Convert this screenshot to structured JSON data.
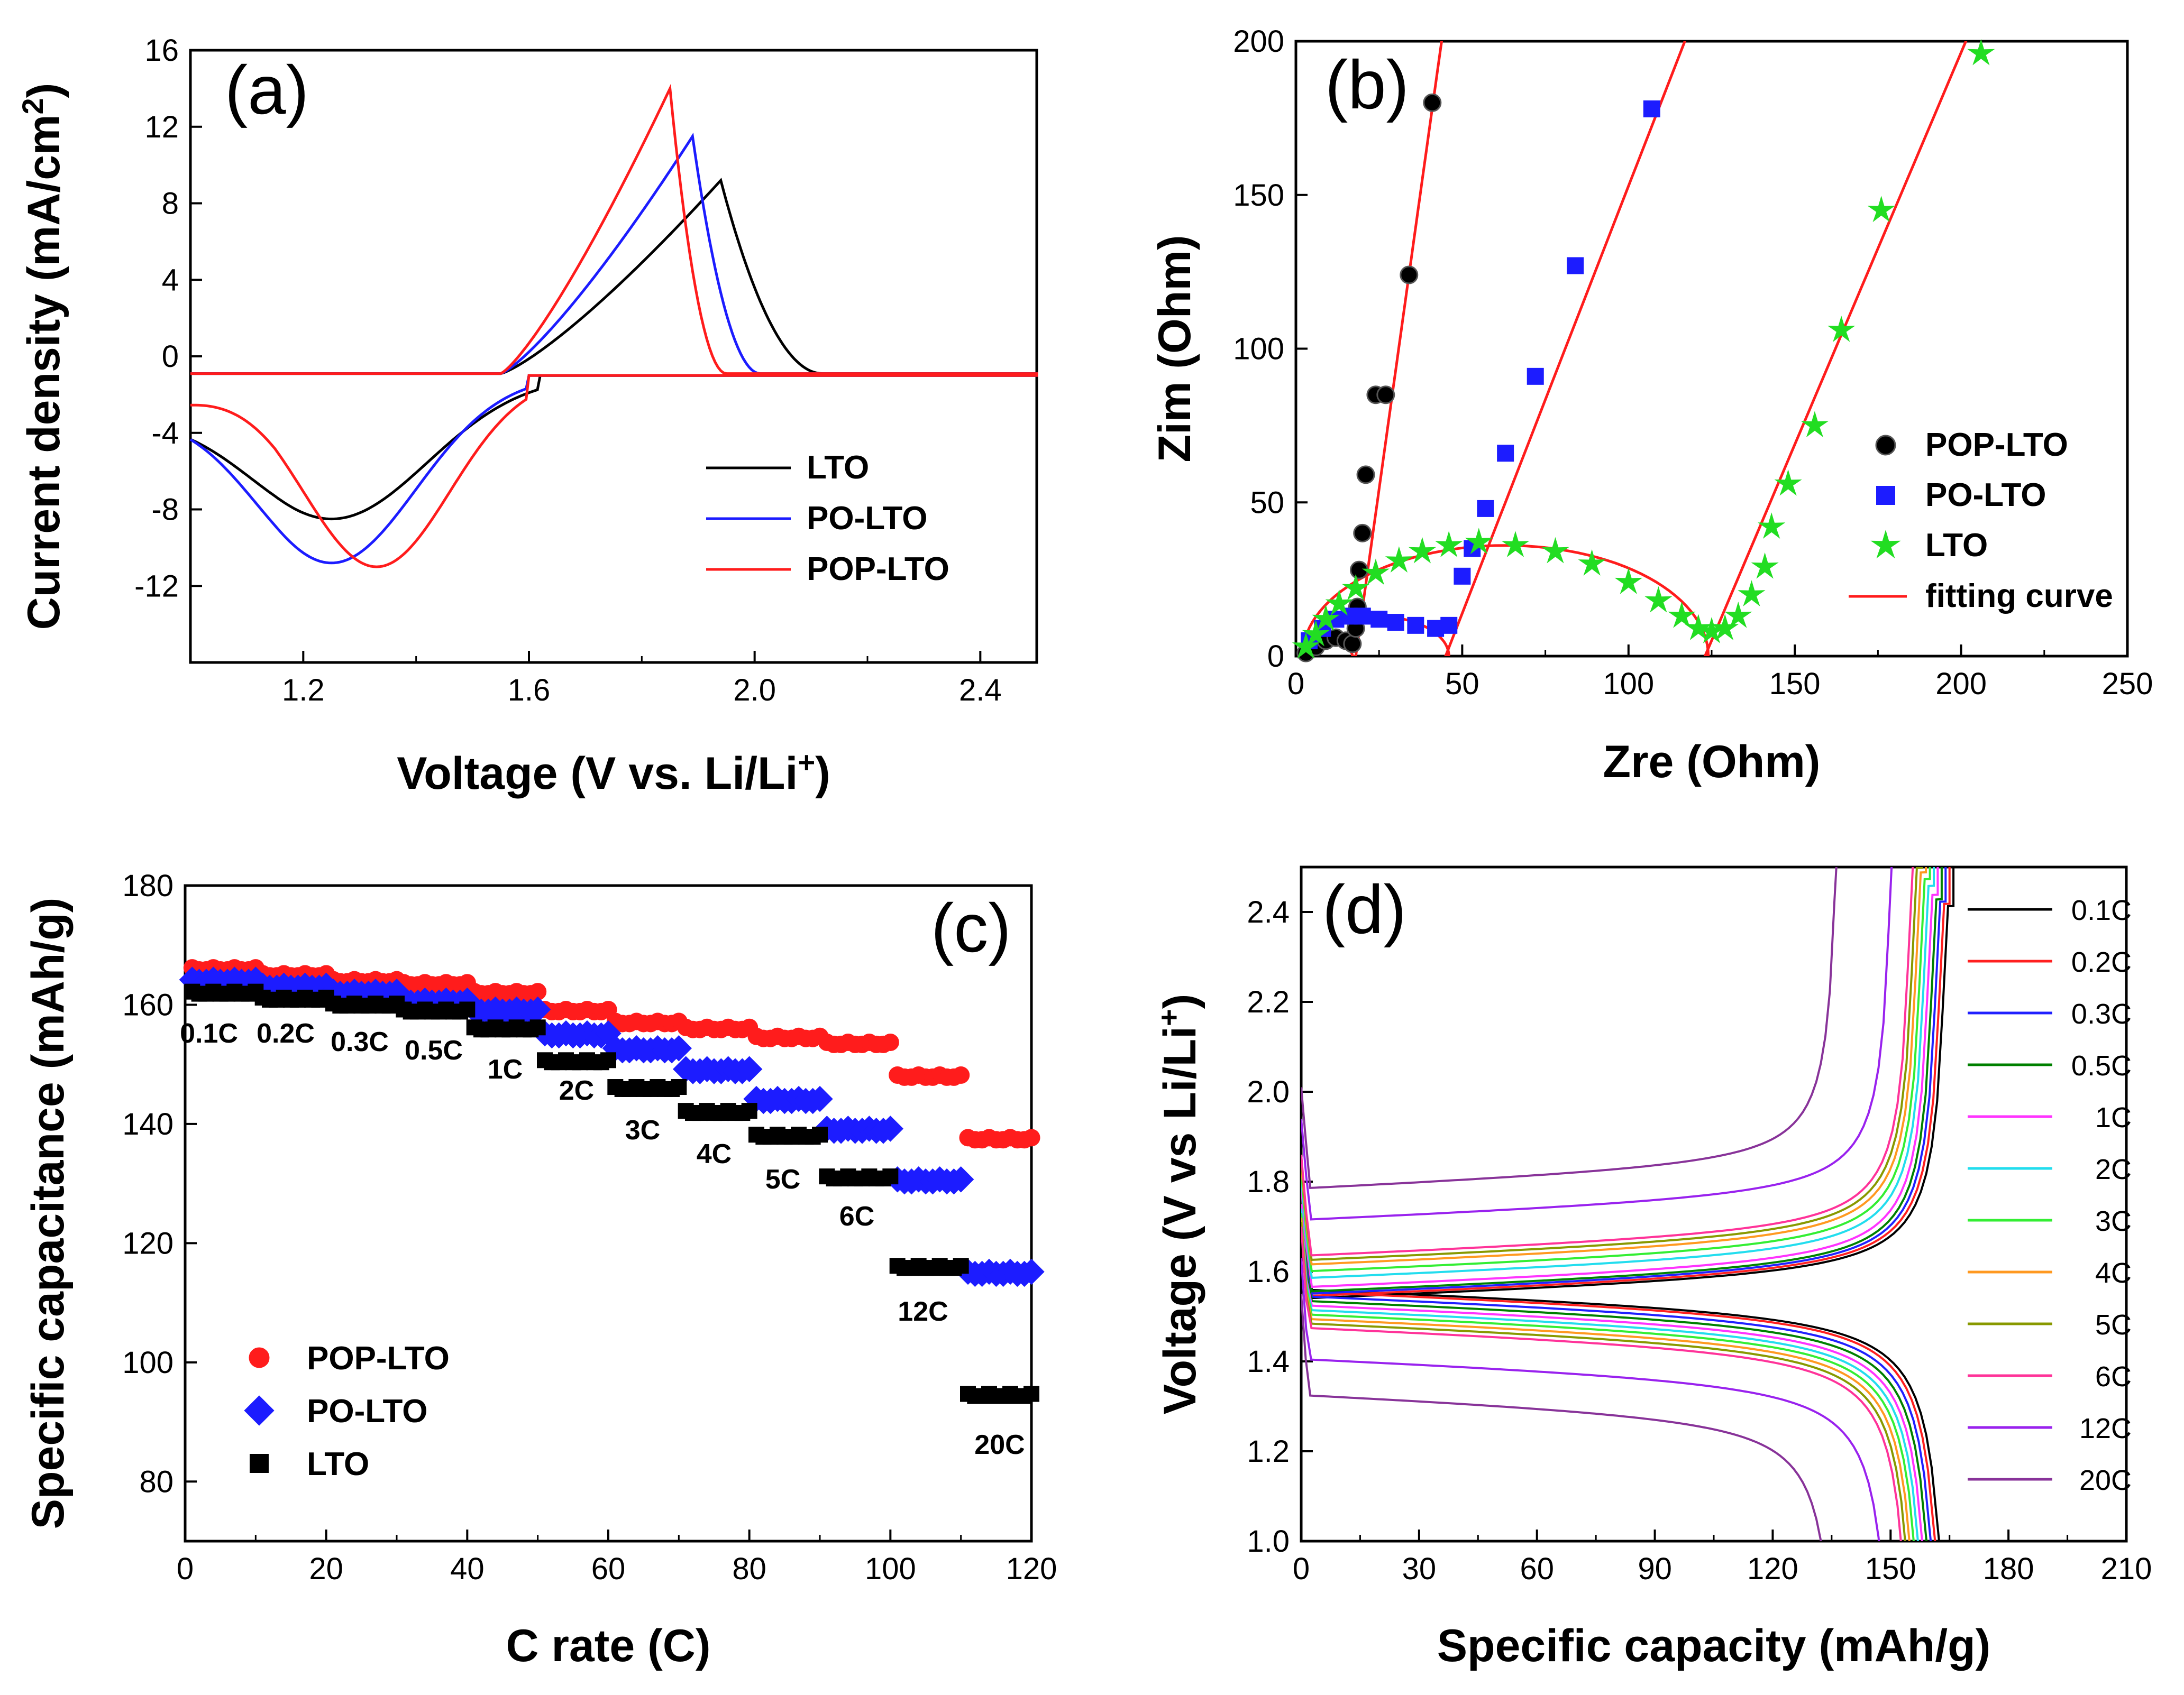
{
  "chart_data": [
    {
      "id": "a",
      "type": "line",
      "panel_label": "(a)",
      "xlabel": "Voltage (V vs. Li/Li",
      "xlabel_sup": "+",
      "xlabel_end": ")",
      "ylabel": "Current density (mA/cm",
      "ylabel_sup": "2",
      "ylabel_end": ")",
      "xlim": [
        1.0,
        2.5
      ],
      "ylim": [
        -16,
        16
      ],
      "xticks": [
        "1.2",
        "1.6",
        "2.0",
        "2.4"
      ],
      "xtick_values": [
        1.2,
        1.6,
        2.0,
        2.4
      ],
      "yticks": [
        "-12",
        "-8",
        "-4",
        "0",
        "4",
        "8",
        "12",
        "16"
      ],
      "ytick_values": [
        -12,
        -8,
        -4,
        0,
        4,
        8,
        12,
        16
      ],
      "series": [
        {
          "name": "LTO",
          "color": "#000000",
          "peak_anodic": [
            1.94,
            9.2
          ],
          "peak_cathodic": [
            1.25,
            -8.5
          ],
          "ox_end": 2.12,
          "red_start": 1.62,
          "red_width": 0.17
        },
        {
          "name": "PO-LTO",
          "color": "#1c1cff",
          "peak_anodic": [
            1.89,
            11.5
          ],
          "peak_cathodic": [
            1.25,
            -10.8
          ],
          "ox_end": 2.01,
          "red_start": 1.6,
          "red_width": 0.15
        },
        {
          "name": "POP-LTO",
          "color": "#ff1c1c",
          "peak_anodic": [
            1.85,
            14.0
          ],
          "peak_cathodic": [
            1.33,
            -11.0
          ],
          "ox_end": 1.95,
          "red_start": 1.6,
          "red_width": 0.13
        }
      ]
    },
    {
      "id": "b",
      "type": "scatter",
      "panel_label": "(b)",
      "xlabel": "Zre (Ohm)",
      "ylabel": "Zim (Ohm)",
      "xlim": [
        0,
        250
      ],
      "ylim": [
        0,
        200
      ],
      "xticks": [
        "0",
        "50",
        "100",
        "150",
        "200",
        "250"
      ],
      "xtick_values": [
        0,
        50,
        100,
        150,
        200,
        250
      ],
      "yticks": [
        "0",
        "50",
        "100",
        "150",
        "200"
      ],
      "ytick_values": [
        0,
        50,
        100,
        150,
        200
      ],
      "legend": [
        "POP-LTO",
        "PO-LTO",
        "LTO",
        "fitting curve"
      ],
      "series": [
        {
          "name": "POP-LTO",
          "color": "#000000",
          "marker": "circle",
          "x": [
            3,
            6,
            9,
            12,
            15,
            17,
            18,
            18.5,
            19,
            20,
            21,
            24,
            27,
            34,
            41
          ],
          "y": [
            1,
            3,
            5,
            6,
            5,
            4,
            9,
            16,
            28,
            40,
            59,
            85,
            85,
            124,
            180
          ],
          "fit": {
            "arc_start": 2,
            "arc_end": 17,
            "arc_height": 4,
            "slope": 7.75,
            "intercept": 18
          }
        },
        {
          "name": "PO-LTO",
          "color": "#1c1cff",
          "marker": "square",
          "x": [
            4,
            8,
            12,
            16,
            20,
            25,
            30,
            36,
            42,
            46,
            50,
            53,
            57,
            63,
            72,
            84,
            107
          ],
          "y": [
            5,
            9,
            12,
            13,
            13,
            12,
            11,
            10,
            9,
            10,
            26,
            35,
            48,
            66,
            91,
            127,
            178
          ],
          "fit": {
            "arc_start": 2,
            "arc_end": 46,
            "arc_height": 13,
            "slope": 2.78,
            "intercept": 45
          }
        },
        {
          "name": "LTO",
          "color": "#22dd22",
          "marker": "star",
          "x": [
            3,
            6,
            9,
            13,
            18,
            24,
            31,
            38,
            46,
            55,
            66,
            78,
            89,
            100,
            109,
            116,
            121,
            125,
            129,
            133,
            137,
            141,
            143,
            148,
            156,
            164,
            176,
            206
          ],
          "y": [
            3,
            7,
            12,
            17,
            22,
            27,
            31,
            34,
            36,
            37,
            36,
            34,
            30,
            24,
            18,
            13,
            9,
            8,
            9,
            13,
            20,
            29,
            42,
            56,
            75,
            106,
            145,
            196
          ],
          "fit": {
            "arc_start": 2,
            "arc_end": 124,
            "arc_height": 36,
            "slope": 2.55,
            "intercept": 123
          }
        }
      ]
    },
    {
      "id": "c",
      "type": "scatter",
      "panel_label": "(c)",
      "xlabel": "C rate (C)",
      "ylabel": "Specific capacitance (mAh/g)",
      "xlim": [
        0,
        120
      ],
      "ylim": [
        70,
        180
      ],
      "xticks": [
        "0",
        "20",
        "40",
        "60",
        "80",
        "100",
        "120"
      ],
      "xtick_values": [
        0,
        20,
        40,
        60,
        80,
        100,
        120
      ],
      "yticks": [
        "80",
        "100",
        "120",
        "140",
        "160",
        "180"
      ],
      "ytick_values": [
        80,
        100,
        120,
        140,
        160,
        180
      ],
      "rates": [
        "0.1C",
        "0.2C",
        "0.3C",
        "0.5C",
        "1C",
        "2C",
        "3C",
        "4C",
        "5C",
        "6C",
        "12C",
        "20C"
      ],
      "series": [
        {
          "name": "POP-LTO",
          "color": "#ff1c1c",
          "marker": "circle",
          "values": [
            166,
            165,
            164,
            163.5,
            162,
            159,
            157,
            156,
            154.5,
            153.5,
            148,
            137.5
          ]
        },
        {
          "name": "PO-LTO",
          "color": "#1c1cff",
          "marker": "diamond",
          "values": [
            164,
            163,
            162,
            160.5,
            159,
            155,
            152.5,
            149,
            144,
            139,
            130.5,
            115
          ]
        },
        {
          "name": "LTO",
          "color": "#000000",
          "marker": "square",
          "values": [
            162,
            161,
            160,
            159,
            156,
            150.5,
            146,
            142,
            138,
            131,
            116,
            94.5
          ]
        }
      ]
    },
    {
      "id": "d",
      "type": "line",
      "panel_label": "(d)",
      "xlabel": "Specific capacity (mAh/g)",
      "ylabel": "Voltage (V vs Li/Li",
      "ylabel_sup": "+",
      "ylabel_end": ")",
      "xlim": [
        0,
        210
      ],
      "ylim": [
        1.0,
        2.5
      ],
      "xticks": [
        "0",
        "30",
        "60",
        "90",
        "120",
        "150",
        "180",
        "210"
      ],
      "xtick_values": [
        0,
        30,
        60,
        90,
        120,
        150,
        180,
        210
      ],
      "yticks": [
        "1.0",
        "1.2",
        "1.4",
        "1.6",
        "1.8",
        "2.0",
        "2.2",
        "2.4"
      ],
      "ytick_values": [
        1.0,
        1.2,
        1.4,
        1.6,
        1.8,
        2.0,
        2.2,
        2.4
      ],
      "series": [
        {
          "name": "0.1C",
          "color": "#000000",
          "capacity": 166,
          "v_charge": 1.565,
          "v_discharge": 1.535
        },
        {
          "name": "0.2C",
          "color": "#ff2020",
          "capacity": 165,
          "v_charge": 1.57,
          "v_discharge": 1.53
        },
        {
          "name": "0.3C",
          "color": "#2020ff",
          "capacity": 164,
          "v_charge": 1.575,
          "v_discharge": 1.52
        },
        {
          "name": "0.5C",
          "color": "#008000",
          "capacity": 163,
          "v_charge": 1.58,
          "v_discharge": 1.51
        },
        {
          "name": "1C",
          "color": "#ff33ff",
          "capacity": 162,
          "v_charge": 1.59,
          "v_discharge": 1.5
        },
        {
          "name": "2C",
          "color": "#22ddee",
          "capacity": 161,
          "v_charge": 1.61,
          "v_discharge": 1.49
        },
        {
          "name": "3C",
          "color": "#33ee33",
          "capacity": 160,
          "v_charge": 1.625,
          "v_discharge": 1.48
        },
        {
          "name": "4C",
          "color": "#ff9920",
          "capacity": 159,
          "v_charge": 1.64,
          "v_discharge": 1.47
        },
        {
          "name": "5C",
          "color": "#889900",
          "capacity": 158,
          "v_charge": 1.65,
          "v_discharge": 1.46
        },
        {
          "name": "6C",
          "color": "#ff3399",
          "capacity": 157,
          "v_charge": 1.66,
          "v_discharge": 1.45
        },
        {
          "name": "12C",
          "color": "#9922ee",
          "capacity": 152,
          "v_charge": 1.74,
          "v_discharge": 1.38
        },
        {
          "name": "20C",
          "color": "#883399",
          "capacity": 138,
          "v_charge": 1.81,
          "v_discharge": 1.3
        }
      ]
    }
  ]
}
